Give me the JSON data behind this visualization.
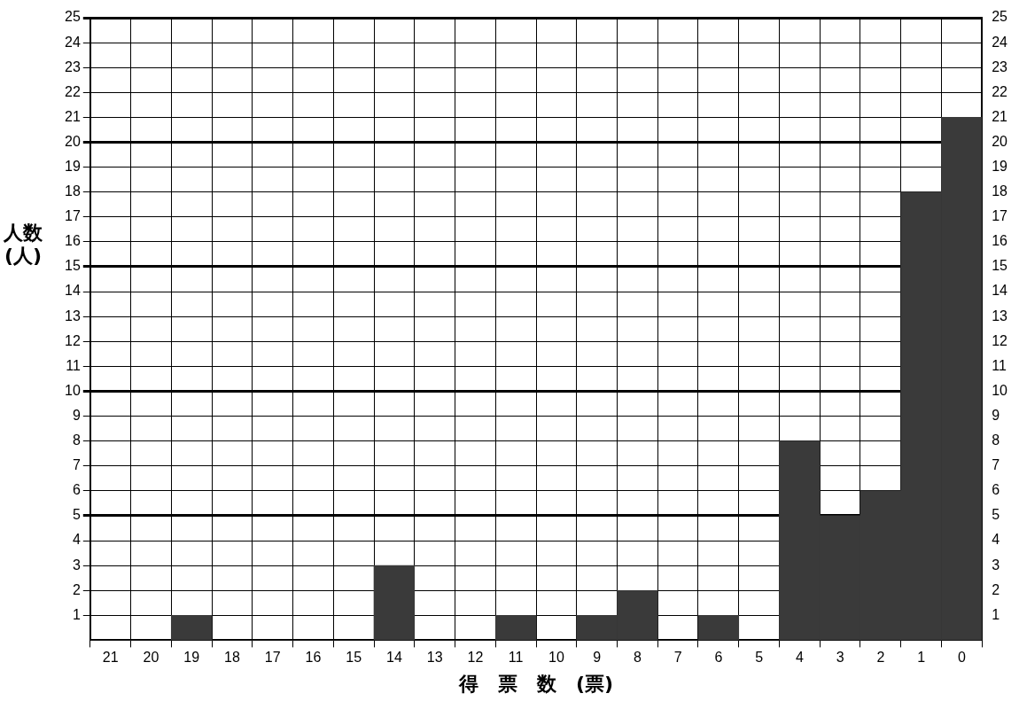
{
  "chart_data": {
    "type": "bar",
    "xlabel": "得　票　数　(票)",
    "ylabel": "人数\n(人)",
    "categories": [
      "21",
      "20",
      "19",
      "18",
      "17",
      "16",
      "15",
      "14",
      "13",
      "12",
      "11",
      "10",
      "9",
      "8",
      "7",
      "6",
      "5",
      "4",
      "3",
      "2",
      "1",
      "0"
    ],
    "values": [
      0,
      0,
      1,
      0,
      0,
      0,
      0,
      3,
      0,
      0,
      1,
      0,
      1,
      2,
      0,
      1,
      0,
      8,
      5,
      6,
      18,
      21
    ],
    "color": "#3a3a3a",
    "ylim": [
      0,
      25
    ],
    "yticks": [
      1,
      2,
      3,
      4,
      5,
      6,
      7,
      8,
      9,
      10,
      11,
      12,
      13,
      14,
      15,
      16,
      17,
      18,
      19,
      20,
      21,
      22,
      23,
      24,
      25
    ],
    "y2lim": [
      0,
      25
    ],
    "y2ticks": [
      1,
      2,
      3,
      4,
      5,
      6,
      7,
      8,
      9,
      10,
      11,
      12,
      13,
      14,
      15,
      16,
      17,
      18,
      19,
      20,
      21,
      22,
      23,
      24,
      25
    ],
    "grid": true,
    "legend": false
  }
}
